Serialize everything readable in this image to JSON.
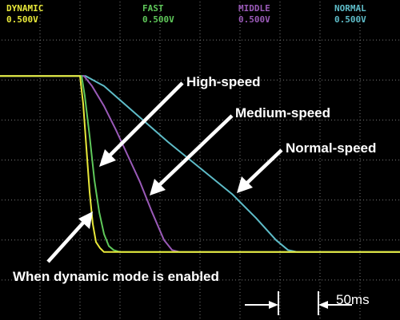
{
  "chart_data": {
    "type": "line",
    "title": "",
    "xlabel": "",
    "ylabel": "",
    "time_per_div": "50ms",
    "x_unit": "ms",
    "xlim": [
      0,
      500
    ],
    "ylim": [
      -4,
      4
    ],
    "grid": true,
    "legend_placement": "top",
    "series": [
      {
        "name": "DYNAMIC",
        "scale": "0.500V",
        "color": "#e8e83a",
        "x": [
          0,
          100,
          104,
          108,
          112,
          116,
          120,
          125,
          130,
          140,
          500
        ],
        "y": [
          2.1,
          2.1,
          1.4,
          0.3,
          -0.8,
          -1.6,
          -2.05,
          -2.2,
          -2.3,
          -2.3,
          -2.3
        ]
      },
      {
        "name": "FAST",
        "scale": "0.500V",
        "color": "#5fc85a",
        "x": [
          0,
          102,
          106,
          112,
          118,
          124,
          130,
          136,
          142,
          150,
          500
        ],
        "y": [
          2.1,
          2.1,
          1.6,
          0.6,
          -0.5,
          -1.3,
          -1.85,
          -2.15,
          -2.25,
          -2.3,
          -2.3
        ]
      },
      {
        "name": "MIDDLE",
        "scale": "0.500V",
        "color": "#9a5ab8",
        "x": [
          0,
          105,
          115,
          130,
          145,
          160,
          175,
          190,
          205,
          215,
          225,
          500
        ],
        "y": [
          2.1,
          2.1,
          1.85,
          1.35,
          0.75,
          0.1,
          -0.55,
          -1.3,
          -2.0,
          -2.25,
          -2.3,
          -2.3
        ]
      },
      {
        "name": "NORMAL",
        "scale": "0.500V",
        "color": "#5ebcc8",
        "x": [
          0,
          107,
          130,
          170,
          210,
          250,
          290,
          320,
          345,
          360,
          372,
          500
        ],
        "y": [
          2.1,
          2.1,
          1.85,
          1.15,
          0.45,
          -0.2,
          -0.85,
          -1.45,
          -2.0,
          -2.25,
          -2.3,
          -2.3
        ]
      }
    ],
    "annotations": [
      {
        "text": "High-speed"
      },
      {
        "text": "Medium-speed"
      },
      {
        "text": "Normal-speed"
      },
      {
        "text": "When dynamic mode is enabled"
      }
    ]
  }
}
